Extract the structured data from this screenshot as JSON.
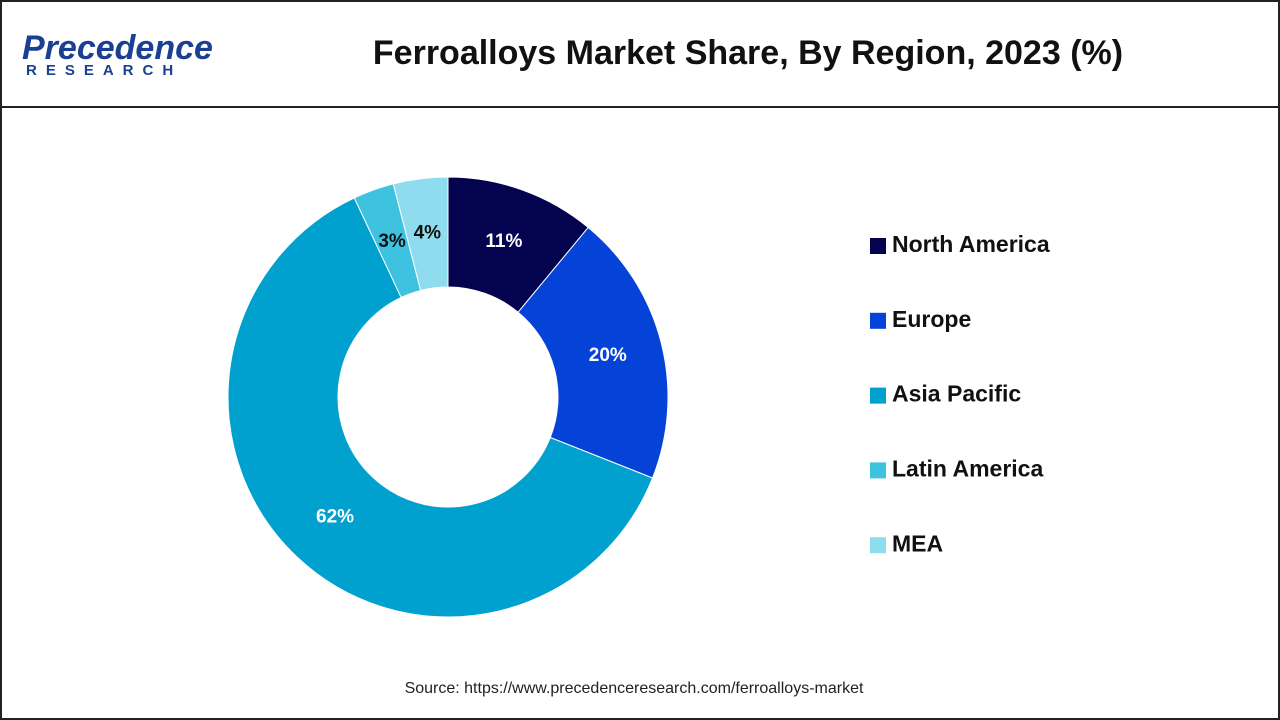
{
  "logo": {
    "name": "Precedence",
    "tagline": "RESEARCH"
  },
  "chart_data": {
    "type": "pie",
    "title": "Ferroalloys Market Share, By Region, 2023 (%)",
    "categories": [
      "North America",
      "Europe",
      "Asia Pacific",
      "Latin America",
      "MEA"
    ],
    "values": [
      11,
      20,
      62,
      3,
      4
    ],
    "value_labels": [
      "11%",
      "20%",
      "62%",
      "3%",
      "4%"
    ],
    "colors": [
      "#03034f",
      "#0442d8",
      "#00a0cf",
      "#3dc2df",
      "#8fdcef"
    ],
    "legend": "right"
  },
  "source": "Source: https://www.precedenceresearch.com/ferroalloys-market"
}
